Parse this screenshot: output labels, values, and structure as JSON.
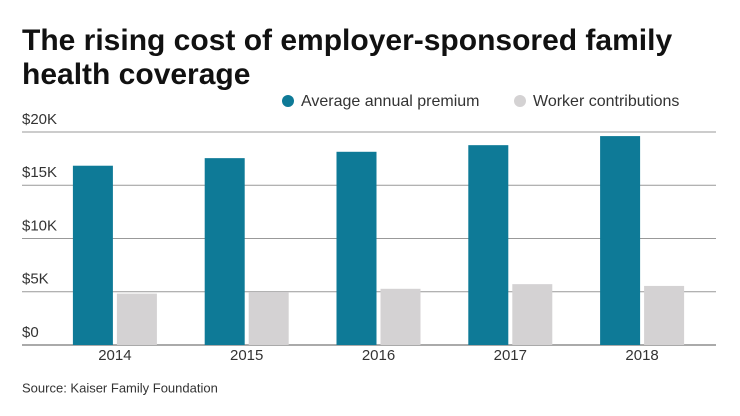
{
  "chart_data": {
    "type": "bar",
    "title_lines": [
      "The rising cost of employer-sponsored family",
      "health coverage"
    ],
    "categories": [
      "2014",
      "2015",
      "2016",
      "2017",
      "2018"
    ],
    "series": [
      {
        "name": "Average annual premium",
        "color": "#0e7a97",
        "values": [
          16834,
          17545,
          18142,
          18764,
          19616
        ]
      },
      {
        "name": "Worker contributions",
        "color": "#d4d2d3",
        "values": [
          4823,
          4955,
          5277,
          5714,
          5547
        ]
      }
    ],
    "ylim": [
      0,
      20000
    ],
    "yticks": [
      {
        "value": 0,
        "label": "$0"
      },
      {
        "value": 5000,
        "label": "$5K"
      },
      {
        "value": 10000,
        "label": "$10K"
      },
      {
        "value": 15000,
        "label": "$15K"
      },
      {
        "value": 20000,
        "label": "$20K"
      }
    ],
    "grid": true,
    "source": "Source: Kaiser Family Foundation"
  }
}
